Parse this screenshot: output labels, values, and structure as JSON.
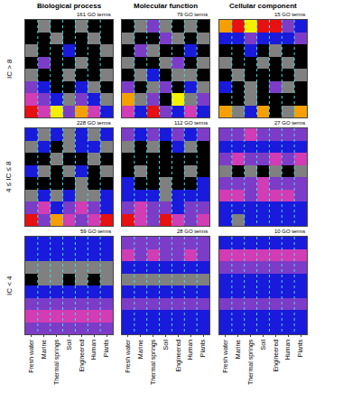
{
  "chart_data": {
    "type": "heatmap",
    "categories": [
      "Fresh water",
      "Marine",
      "Thermal springs",
      "Soil",
      "Engineered",
      "Human",
      "Plants"
    ],
    "columns": [
      "Biological process",
      "Molecular function",
      "Cellular component"
    ],
    "colors": [
      "#000000",
      "#808080",
      "#1a1adc",
      "#7d3cc8",
      "#d23cb4",
      "#e81010",
      "#f5a000",
      "#f5f000"
    ],
    "zlim": [
      0,
      7
    ],
    "tick_labels": "x",
    "rows": [
      {
        "label": "IC > 8",
        "panels": [
          {
            "title": "161 GO terms",
            "cells": [
              [
                0,
                1,
                0,
                0,
                1,
                0,
                0
              ],
              [
                0,
                0,
                1,
                0,
                0,
                1,
                0
              ],
              [
                1,
                0,
                0,
                2,
                0,
                0,
                1
              ],
              [
                0,
                3,
                0,
                0,
                1,
                0,
                0
              ],
              [
                1,
                0,
                0,
                1,
                0,
                0,
                1
              ],
              [
                3,
                2,
                0,
                0,
                2,
                1,
                0
              ],
              [
                4,
                3,
                2,
                1,
                3,
                2,
                1
              ],
              [
                5,
                4,
                7,
                3,
                6,
                4,
                2
              ]
            ]
          },
          {
            "title": "79 GO terms",
            "cells": [
              [
                0,
                1,
                3,
                1,
                0,
                1,
                0
              ],
              [
                1,
                0,
                0,
                3,
                1,
                0,
                1
              ],
              [
                0,
                3,
                1,
                0,
                0,
                2,
                0
              ],
              [
                1,
                0,
                0,
                1,
                3,
                0,
                1
              ],
              [
                0,
                1,
                2,
                0,
                1,
                1,
                0
              ],
              [
                3,
                0,
                1,
                3,
                0,
                2,
                1
              ],
              [
                6,
                1,
                3,
                0,
                7,
                1,
                3
              ],
              [
                4,
                2,
                5,
                3,
                2,
                4,
                2
              ]
            ]
          },
          {
            "title": "15 GO terms",
            "cells": [
              [
                6,
                5,
                7,
                5,
                5,
                3,
                2
              ],
              [
                2,
                2,
                3,
                2,
                2,
                2,
                3
              ],
              [
                0,
                0,
                2,
                0,
                1,
                0,
                0
              ],
              [
                1,
                0,
                0,
                1,
                0,
                1,
                0
              ],
              [
                0,
                1,
                0,
                0,
                0,
                0,
                1
              ],
              [
                2,
                0,
                1,
                0,
                3,
                1,
                0
              ],
              [
                0,
                0,
                1,
                0,
                0,
                0,
                0
              ],
              [
                6,
                1,
                2,
                6,
                0,
                1,
                6
              ]
            ]
          }
        ]
      },
      {
        "label": "4 ≤ IC ≤ 8",
        "panels": [
          {
            "title": "228 GO terms",
            "cells": [
              [
                2,
                1,
                2,
                1,
                2,
                1,
                2
              ],
              [
                1,
                2,
                0,
                1,
                2,
                2,
                1
              ],
              [
                0,
                0,
                1,
                0,
                0,
                1,
                0
              ],
              [
                2,
                1,
                0,
                1,
                2,
                0,
                1
              ],
              [
                0,
                0,
                0,
                0,
                1,
                0,
                0
              ],
              [
                1,
                2,
                1,
                2,
                1,
                1,
                2
              ],
              [
                3,
                4,
                2,
                3,
                4,
                3,
                2
              ],
              [
                5,
                3,
                6,
                4,
                3,
                4,
                5
              ]
            ]
          },
          {
            "title": "112 GO terms",
            "cells": [
              [
                3,
                2,
                3,
                2,
                3,
                2,
                3
              ],
              [
                1,
                0,
                1,
                0,
                2,
                1,
                0
              ],
              [
                0,
                0,
                0,
                0,
                0,
                0,
                0
              ],
              [
                0,
                1,
                0,
                0,
                0,
                1,
                0
              ],
              [
                2,
                0,
                0,
                1,
                0,
                0,
                2
              ],
              [
                2,
                2,
                2,
                1,
                2,
                2,
                2
              ],
              [
                3,
                4,
                3,
                3,
                2,
                3,
                3
              ],
              [
                5,
                4,
                3,
                5,
                4,
                3,
                4
              ]
            ]
          },
          {
            "title": "27 GO terms",
            "cells": [
              [
                3,
                3,
                4,
                3,
                3,
                3,
                3
              ],
              [
                2,
                2,
                2,
                2,
                2,
                2,
                2
              ],
              [
                3,
                4,
                3,
                3,
                4,
                3,
                4
              ],
              [
                1,
                0,
                1,
                0,
                1,
                0,
                1
              ],
              [
                3,
                3,
                3,
                4,
                3,
                3,
                3
              ],
              [
                4,
                4,
                3,
                4,
                4,
                4,
                3
              ],
              [
                2,
                2,
                2,
                2,
                2,
                2,
                2
              ],
              [
                2,
                1,
                2,
                2,
                2,
                2,
                2
              ]
            ]
          }
        ]
      },
      {
        "label": "IC < 4",
        "panels": [
          {
            "title": "59 GO terms",
            "cells": [
              [
                2,
                2,
                2,
                2,
                2,
                2,
                2
              ],
              [
                2,
                2,
                2,
                2,
                2,
                2,
                2
              ],
              [
                1,
                1,
                1,
                1,
                1,
                1,
                1
              ],
              [
                0,
                1,
                1,
                0,
                1,
                0,
                1
              ],
              [
                2,
                2,
                2,
                2,
                2,
                2,
                2
              ],
              [
                3,
                3,
                3,
                3,
                3,
                3,
                3
              ],
              [
                4,
                4,
                4,
                4,
                4,
                4,
                4
              ],
              [
                3,
                3,
                3,
                3,
                3,
                3,
                3
              ]
            ]
          },
          {
            "title": "28 GO terms",
            "cells": [
              [
                3,
                3,
                3,
                3,
                3,
                3,
                3
              ],
              [
                4,
                3,
                4,
                3,
                3,
                4,
                3
              ],
              [
                2,
                2,
                2,
                2,
                2,
                2,
                2
              ],
              [
                1,
                1,
                1,
                1,
                1,
                1,
                1
              ],
              [
                2,
                2,
                2,
                2,
                2,
                2,
                2
              ],
              [
                3,
                3,
                3,
                3,
                3,
                3,
                3
              ],
              [
                2,
                2,
                2,
                2,
                2,
                2,
                2
              ],
              [
                2,
                2,
                2,
                2,
                2,
                2,
                2
              ]
            ]
          },
          {
            "title": "10 GO terms",
            "cells": [
              [
                2,
                2,
                2,
                2,
                2,
                2,
                2
              ],
              [
                4,
                4,
                4,
                4,
                4,
                4,
                4
              ],
              [
                3,
                3,
                3,
                3,
                3,
                3,
                3
              ],
              [
                2,
                2,
                2,
                2,
                2,
                2,
                2
              ],
              [
                2,
                2,
                2,
                2,
                2,
                2,
                2
              ],
              [
                3,
                3,
                3,
                3,
                3,
                3,
                3
              ],
              [
                2,
                2,
                2,
                2,
                2,
                2,
                2
              ],
              [
                2,
                2,
                2,
                2,
                2,
                2,
                2
              ]
            ]
          }
        ]
      }
    ]
  }
}
